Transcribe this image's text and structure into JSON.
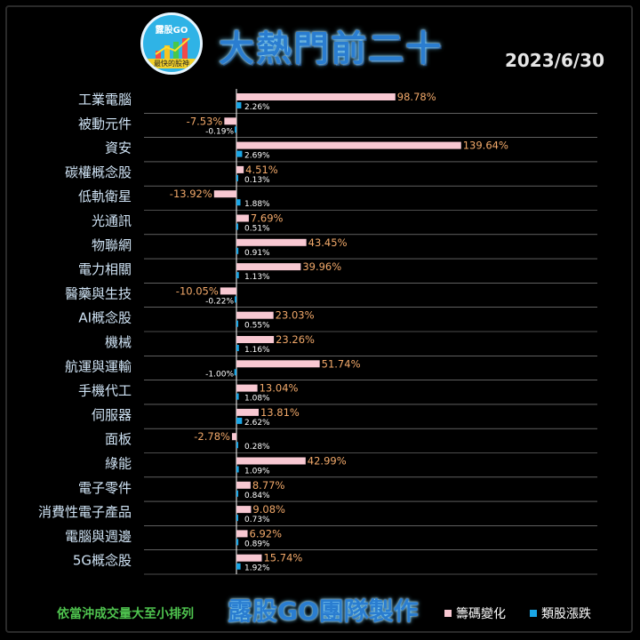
{
  "header": {
    "logo_text": "露股GO",
    "logo_sub": "最快的股神",
    "title": "大熱門前二十",
    "date": "2023/6/30"
  },
  "colors": {
    "chip_change": "#f8c8d2",
    "sector_change": "#1aa6e6",
    "label": "#cfe3f5",
    "chip_label": "#f2a96a",
    "sector_label": "#ffffff",
    "separator": "#ffffff",
    "axis": "#ffffff"
  },
  "chart_data": {
    "type": "bar",
    "orientation": "horizontal",
    "categories": [
      "工業電腦",
      "被動元件",
      "資安",
      "碳權概念股",
      "低軌衛星",
      "光通訊",
      "物聯網",
      "電力相關",
      "醫藥與生技",
      "AI概念股",
      "機械",
      "航運與運輸",
      "手機代工",
      "伺服器",
      "面板",
      "綠能",
      "電子零件",
      "消費性電子產品",
      "電腦與週邊",
      "5G概念股"
    ],
    "series": [
      {
        "name": "籌碼變化",
        "values": [
          98.78,
          -7.53,
          139.64,
          4.51,
          -13.92,
          7.69,
          43.45,
          39.96,
          -10.05,
          23.03,
          23.26,
          51.74,
          13.04,
          13.81,
          -2.78,
          42.99,
          8.77,
          9.08,
          6.92,
          15.74
        ],
        "labels": [
          "98.78%",
          "-7.53%",
          "139.64%",
          "4.51%",
          "-13.92%",
          "7.69%",
          "43.45%",
          "39.96%",
          "-10.05%",
          "23.03%",
          "23.26%",
          "51.74%",
          "13.04%",
          "13.81%",
          "-2.78%",
          "42.99%",
          "8.77%",
          "9.08%",
          "6.92%",
          "15.74%"
        ]
      },
      {
        "name": "類股漲跌",
        "values": [
          2.26,
          -0.19,
          2.69,
          0.13,
          1.88,
          0.51,
          0.91,
          1.13,
          -0.22,
          0.55,
          1.16,
          -1.0,
          1.08,
          2.62,
          0.28,
          1.09,
          0.84,
          0.73,
          0.89,
          1.92
        ],
        "labels": [
          "2.26%",
          "-0.19%",
          "2.69%",
          "0.13%",
          "1.88%",
          "0.51%",
          "0.91%",
          "1.13%",
          "-0.22%",
          "0.55%",
          "1.16%",
          "-1.00%",
          "1.08%",
          "2.62%",
          "0.28%",
          "1.09%",
          "0.84%",
          "0.73%",
          "0.89%",
          "1.92%"
        ]
      }
    ],
    "title": "大熱門前二十",
    "xlabel": "",
    "ylabel": "",
    "legend_position": "bottom-right",
    "grid": false
  },
  "footer": {
    "note": "依當沖成交量大至小排列",
    "team": "露股GO團隊製作"
  },
  "legend": {
    "chip": "籌碼變化",
    "sector": "類股漲跌"
  }
}
